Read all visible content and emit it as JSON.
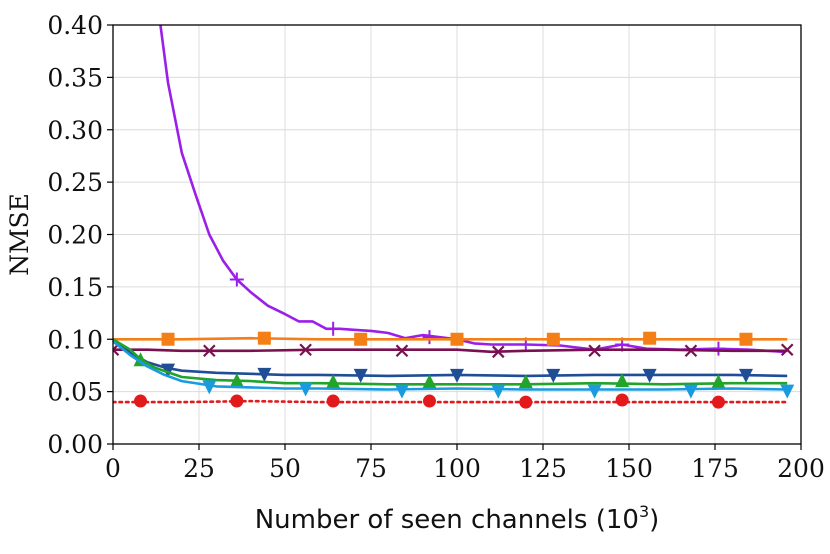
{
  "chart_data": {
    "type": "line",
    "xlabel": "Number of seen channels (10",
    "xlabel_sup": "3",
    "xlabel_close": ")",
    "ylabel": "NMSE",
    "xlim": [
      0,
      200
    ],
    "ylim": [
      0.0,
      0.4
    ],
    "grid": true,
    "x_ticks": [
      0,
      25,
      50,
      75,
      100,
      125,
      150,
      175,
      200
    ],
    "y_ticks": [
      0.0,
      0.05,
      0.1,
      0.15,
      0.2,
      0.25,
      0.3,
      0.35,
      0.4
    ],
    "x_tick_labels": [
      "0",
      "25",
      "50",
      "75",
      "100",
      "125",
      "150",
      "175",
      "200"
    ],
    "y_tick_labels": [
      "0.00",
      "0.05",
      "0.10",
      "0.15",
      "0.20",
      "0.25",
      "0.30",
      "0.35",
      "0.40"
    ],
    "series": [
      {
        "color": "#9b1fe8",
        "marker": "plus",
        "dash": "solid",
        "points": [
          [
            13,
            0.42
          ],
          [
            16,
            0.345
          ],
          [
            20,
            0.278
          ],
          [
            24,
            0.238
          ],
          [
            28,
            0.2
          ],
          [
            32,
            0.175
          ],
          [
            36,
            0.157
          ],
          [
            40,
            0.145
          ],
          [
            45,
            0.132
          ],
          [
            50,
            0.124
          ],
          [
            54,
            0.117
          ],
          [
            58,
            0.117
          ],
          [
            62,
            0.11
          ],
          [
            66,
            0.11
          ],
          [
            70,
            0.109
          ],
          [
            75,
            0.108
          ],
          [
            80,
            0.106
          ],
          [
            85,
            0.101
          ],
          [
            90,
            0.104
          ],
          [
            95,
            0.102
          ],
          [
            100,
            0.1
          ],
          [
            105,
            0.096
          ],
          [
            110,
            0.095
          ],
          [
            120,
            0.095
          ],
          [
            130,
            0.094
          ],
          [
            140,
            0.09
          ],
          [
            148,
            0.095
          ],
          [
            155,
            0.091
          ],
          [
            165,
            0.09
          ],
          [
            175,
            0.091
          ],
          [
            185,
            0.09
          ],
          [
            195,
            0.088
          ]
        ],
        "markers": [
          [
            36,
            0.157
          ],
          [
            64,
            0.11
          ],
          [
            92,
            0.102
          ],
          [
            120,
            0.095
          ],
          [
            148,
            0.095
          ],
          [
            176,
            0.091
          ]
        ]
      },
      {
        "color": "#f57f17",
        "marker": "square",
        "dash": "solid",
        "points": [
          [
            0,
            0.1
          ],
          [
            20,
            0.1
          ],
          [
            40,
            0.101
          ],
          [
            60,
            0.1
          ],
          [
            80,
            0.1
          ],
          [
            100,
            0.1
          ],
          [
            120,
            0.1
          ],
          [
            140,
            0.1
          ],
          [
            160,
            0.1
          ],
          [
            180,
            0.1
          ],
          [
            196,
            0.1
          ]
        ],
        "markers": [
          [
            16,
            0.1
          ],
          [
            44,
            0.101
          ],
          [
            72,
            0.1
          ],
          [
            100,
            0.1
          ],
          [
            128,
            0.1
          ],
          [
            156,
            0.101
          ],
          [
            184,
            0.1
          ]
        ]
      },
      {
        "color": "#7a1050",
        "marker": "x",
        "dash": "solid",
        "points": [
          [
            0,
            0.09
          ],
          [
            10,
            0.09
          ],
          [
            20,
            0.089
          ],
          [
            40,
            0.089
          ],
          [
            60,
            0.09
          ],
          [
            80,
            0.09
          ],
          [
            100,
            0.09
          ],
          [
            110,
            0.088
          ],
          [
            120,
            0.089
          ],
          [
            140,
            0.09
          ],
          [
            160,
            0.09
          ],
          [
            180,
            0.089
          ],
          [
            196,
            0.089
          ]
        ],
        "markers": [
          [
            0,
            0.09
          ],
          [
            28,
            0.089
          ],
          [
            56,
            0.09
          ],
          [
            84,
            0.089
          ],
          [
            112,
            0.088
          ],
          [
            140,
            0.089
          ],
          [
            168,
            0.089
          ],
          [
            196,
            0.09
          ]
        ]
      },
      {
        "color": "#1f4e96",
        "marker": "triangle-down",
        "dash": "solid",
        "points": [
          [
            0,
            0.098
          ],
          [
            5,
            0.087
          ],
          [
            10,
            0.078
          ],
          [
            15,
            0.073
          ],
          [
            20,
            0.07
          ],
          [
            30,
            0.068
          ],
          [
            40,
            0.067
          ],
          [
            50,
            0.066
          ],
          [
            60,
            0.066
          ],
          [
            80,
            0.065
          ],
          [
            100,
            0.066
          ],
          [
            120,
            0.065
          ],
          [
            140,
            0.066
          ],
          [
            160,
            0.066
          ],
          [
            180,
            0.066
          ],
          [
            196,
            0.065
          ]
        ],
        "markers": [
          [
            16,
            0.071
          ],
          [
            44,
            0.067
          ],
          [
            72,
            0.066
          ],
          [
            100,
            0.066
          ],
          [
            128,
            0.066
          ],
          [
            156,
            0.066
          ],
          [
            184,
            0.066
          ]
        ]
      },
      {
        "color": "#22a32a",
        "marker": "triangle-up",
        "dash": "solid",
        "points": [
          [
            0,
            0.1
          ],
          [
            5,
            0.09
          ],
          [
            8,
            0.081
          ],
          [
            12,
            0.073
          ],
          [
            20,
            0.064
          ],
          [
            30,
            0.061
          ],
          [
            40,
            0.06
          ],
          [
            50,
            0.058
          ],
          [
            60,
            0.058
          ],
          [
            80,
            0.057
          ],
          [
            100,
            0.057
          ],
          [
            120,
            0.057
          ],
          [
            140,
            0.058
          ],
          [
            160,
            0.057
          ],
          [
            180,
            0.058
          ],
          [
            196,
            0.058
          ]
        ],
        "markers": [
          [
            8,
            0.08
          ],
          [
            36,
            0.06
          ],
          [
            64,
            0.059
          ],
          [
            92,
            0.059
          ],
          [
            120,
            0.059
          ],
          [
            148,
            0.06
          ],
          [
            176,
            0.059
          ]
        ]
      },
      {
        "color": "#1a9be0",
        "marker": "triangle-down",
        "dash": "solid",
        "points": [
          [
            0,
            0.098
          ],
          [
            5,
            0.085
          ],
          [
            10,
            0.074
          ],
          [
            15,
            0.066
          ],
          [
            20,
            0.06
          ],
          [
            30,
            0.055
          ],
          [
            40,
            0.054
          ],
          [
            50,
            0.053
          ],
          [
            60,
            0.053
          ],
          [
            80,
            0.052
          ],
          [
            100,
            0.053
          ],
          [
            120,
            0.052
          ],
          [
            140,
            0.052
          ],
          [
            160,
            0.052
          ],
          [
            180,
            0.053
          ],
          [
            196,
            0.052
          ]
        ],
        "markers": [
          [
            28,
            0.055
          ],
          [
            56,
            0.053
          ],
          [
            84,
            0.051
          ],
          [
            112,
            0.051
          ],
          [
            140,
            0.051
          ],
          [
            168,
            0.051
          ],
          [
            196,
            0.051
          ]
        ]
      },
      {
        "color": "#e31a1c",
        "marker": "circle",
        "dash": "dotted",
        "points": [
          [
            0,
            0.04
          ],
          [
            20,
            0.04
          ],
          [
            40,
            0.041
          ],
          [
            60,
            0.04
          ],
          [
            80,
            0.04
          ],
          [
            100,
            0.04
          ],
          [
            120,
            0.04
          ],
          [
            140,
            0.04
          ],
          [
            160,
            0.04
          ],
          [
            180,
            0.04
          ],
          [
            196,
            0.04
          ]
        ],
        "markers": [
          [
            8,
            0.041
          ],
          [
            36,
            0.041
          ],
          [
            64,
            0.041
          ],
          [
            92,
            0.041
          ],
          [
            120,
            0.04
          ],
          [
            148,
            0.042
          ],
          [
            176,
            0.04
          ]
        ]
      }
    ]
  }
}
